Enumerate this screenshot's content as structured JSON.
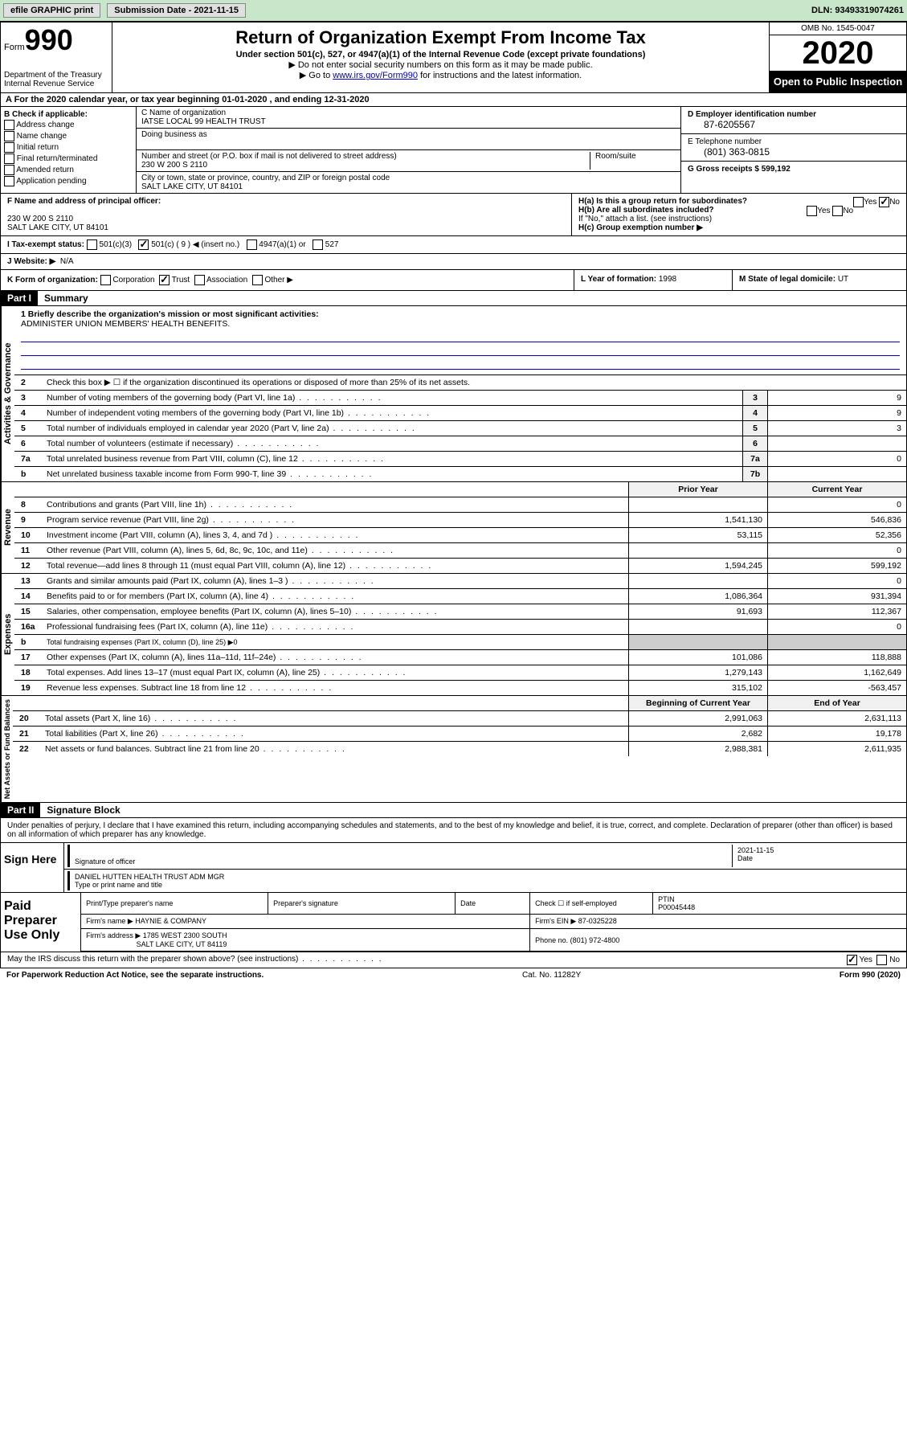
{
  "topbar": {
    "efile": "efile GRAPHIC print",
    "submission_label": "Submission Date - 2021-11-15",
    "dln": "DLN: 93493319074261"
  },
  "header": {
    "form_prefix": "Form",
    "form_number": "990",
    "title": "Return of Organization Exempt From Income Tax",
    "subtitle": "Under section 501(c), 527, or 4947(a)(1) of the Internal Revenue Code (except private foundations)",
    "note1": "▶ Do not enter social security numbers on this form as it may be made public.",
    "note2_pre": "▶ Go to ",
    "note2_link": "www.irs.gov/Form990",
    "note2_post": " for instructions and the latest information.",
    "dept": "Department of the Treasury\nInternal Revenue Service",
    "omb": "OMB No. 1545-0047",
    "year": "2020",
    "otp": "Open to Public Inspection"
  },
  "rowA": "A For the 2020 calendar year, or tax year beginning 01-01-2020   , and ending 12-31-2020",
  "B": {
    "label": "B Check if applicable:",
    "items": [
      "Address change",
      "Name change",
      "Initial return",
      "Final return/terminated",
      "Amended return",
      "Application pending"
    ]
  },
  "C": {
    "name_label": "C Name of organization",
    "name": "IATSE LOCAL 99 HEALTH TRUST",
    "dba_label": "Doing business as",
    "dba": "",
    "addr_label": "Number and street (or P.O. box if mail is not delivered to street address)",
    "room_label": "Room/suite",
    "addr": "230 W 200 S 2110",
    "city_label": "City or town, state or province, country, and ZIP or foreign postal code",
    "city": "SALT LAKE CITY, UT  84101"
  },
  "D": {
    "ein_label": "D Employer identification number",
    "ein": "87-6205567",
    "phone_label": "E Telephone number",
    "phone": "(801) 363-0815",
    "gross_label": "G Gross receipts $",
    "gross": "599,192"
  },
  "F": {
    "label": "F  Name and address of principal officer:",
    "name": "",
    "addr": "230 W 200 S 2110\nSALT LAKE CITY, UT  84101"
  },
  "H": {
    "ha": "H(a)  Is this a group return for subordinates?",
    "ha_no_checked": true,
    "hb": "H(b)  Are all subordinates included?",
    "hb_note": "If \"No,\" attach a list. (see instructions)",
    "hc": "H(c)  Group exemption number ▶"
  },
  "I": {
    "label": "I   Tax-exempt status:",
    "c9_checked": true,
    "opts": [
      "501(c)(3)",
      "501(c) ( 9 ) ◀ (insert no.)",
      "4947(a)(1) or",
      "527"
    ]
  },
  "J": {
    "label": "J   Website: ▶",
    "val": "N/A"
  },
  "K": {
    "label": "K Form of organization:",
    "trust_checked": true,
    "opts": [
      "Corporation",
      "Trust",
      "Association",
      "Other ▶"
    ]
  },
  "L": {
    "label": "L Year of formation:",
    "val": "1998"
  },
  "M": {
    "label": "M State of legal domicile:",
    "val": "UT"
  },
  "partI": {
    "hdr": "Part I",
    "title": "Summary",
    "q1": "1  Briefly describe the organization's mission or most significant activities:",
    "mission": "ADMINISTER UNION MEMBERS' HEALTH BENEFITS.",
    "q2": "Check this box ▶ ☐  if the organization discontinued its operations or disposed of more than 25% of its net assets.",
    "vert_labels": {
      "gov": "Activities & Governance",
      "rev": "Revenue",
      "exp": "Expenses",
      "net": "Net Assets or Fund Balances"
    },
    "col_prior": "Prior Year",
    "col_curr": "Current Year",
    "col_beg": "Beginning of Current Year",
    "col_end": "End of Year",
    "lines_gov": [
      {
        "n": "3",
        "d": "Number of voting members of the governing body (Part VI, line 1a)",
        "box": "3",
        "v": "9"
      },
      {
        "n": "4",
        "d": "Number of independent voting members of the governing body (Part VI, line 1b)",
        "box": "4",
        "v": "9"
      },
      {
        "n": "5",
        "d": "Total number of individuals employed in calendar year 2020 (Part V, line 2a)",
        "box": "5",
        "v": "3"
      },
      {
        "n": "6",
        "d": "Total number of volunteers (estimate if necessary)",
        "box": "6",
        "v": ""
      },
      {
        "n": "7a",
        "d": "Total unrelated business revenue from Part VIII, column (C), line 12",
        "box": "7a",
        "v": "0"
      },
      {
        "n": "b",
        "d": "Net unrelated business taxable income from Form 990-T, line 39",
        "box": "7b",
        "v": ""
      }
    ],
    "lines_rev": [
      {
        "n": "8",
        "d": "Contributions and grants (Part VIII, line 1h)",
        "p": "",
        "c": "0"
      },
      {
        "n": "9",
        "d": "Program service revenue (Part VIII, line 2g)",
        "p": "1,541,130",
        "c": "546,836"
      },
      {
        "n": "10",
        "d": "Investment income (Part VIII, column (A), lines 3, 4, and 7d )",
        "p": "53,115",
        "c": "52,356"
      },
      {
        "n": "11",
        "d": "Other revenue (Part VIII, column (A), lines 5, 6d, 8c, 9c, 10c, and 11e)",
        "p": "",
        "c": "0"
      },
      {
        "n": "12",
        "d": "Total revenue—add lines 8 through 11 (must equal Part VIII, column (A), line 12)",
        "p": "1,594,245",
        "c": "599,192"
      }
    ],
    "lines_exp": [
      {
        "n": "13",
        "d": "Grants and similar amounts paid (Part IX, column (A), lines 1–3 )",
        "p": "",
        "c": "0"
      },
      {
        "n": "14",
        "d": "Benefits paid to or for members (Part IX, column (A), line 4)",
        "p": "1,086,364",
        "c": "931,394"
      },
      {
        "n": "15",
        "d": "Salaries, other compensation, employee benefits (Part IX, column (A), lines 5–10)",
        "p": "91,693",
        "c": "112,367"
      },
      {
        "n": "16a",
        "d": "Professional fundraising fees (Part IX, column (A), line 11e)",
        "p": "",
        "c": "0"
      },
      {
        "n": "b",
        "d": "Total fundraising expenses (Part IX, column (D), line 25) ▶0",
        "p": "—",
        "c": "—"
      },
      {
        "n": "17",
        "d": "Other expenses (Part IX, column (A), lines 11a–11d, 11f–24e)",
        "p": "101,086",
        "c": "118,888"
      },
      {
        "n": "18",
        "d": "Total expenses. Add lines 13–17 (must equal Part IX, column (A), line 25)",
        "p": "1,279,143",
        "c": "1,162,649"
      },
      {
        "n": "19",
        "d": "Revenue less expenses. Subtract line 18 from line 12",
        "p": "315,102",
        "c": "-563,457"
      }
    ],
    "lines_net": [
      {
        "n": "20",
        "d": "Total assets (Part X, line 16)",
        "p": "2,991,063",
        "c": "2,631,113"
      },
      {
        "n": "21",
        "d": "Total liabilities (Part X, line 26)",
        "p": "2,682",
        "c": "19,178"
      },
      {
        "n": "22",
        "d": "Net assets or fund balances. Subtract line 21 from line 20",
        "p": "2,988,381",
        "c": "2,611,935"
      }
    ]
  },
  "partII": {
    "hdr": "Part II",
    "title": "Signature Block",
    "perjury": "Under penalties of perjury, I declare that I have examined this return, including accompanying schedules and statements, and to the best of my knowledge and belief, it is true, correct, and complete. Declaration of preparer (other than officer) is based on all information of which preparer has any knowledge.",
    "sign_here": "Sign Here",
    "sig_officer": "Signature of officer",
    "sig_date_label": "Date",
    "sig_date": "2021-11-15",
    "officer_name": "DANIEL HUTTEN HEALTH TRUST ADM MGR",
    "type_print": "Type or print name and title",
    "paid_prep": "Paid Preparer Use Only",
    "prep_name_label": "Print/Type preparer's name",
    "prep_sig_label": "Preparer's signature",
    "date_label": "Date",
    "check_se": "Check ☐ if self-employed",
    "ptin_label": "PTIN",
    "ptin": "P00045448",
    "firm_name_label": "Firm's name    ▶",
    "firm_name": "HAYNIE & COMPANY",
    "firm_ein_label": "Firm's EIN ▶",
    "firm_ein": "87-0325228",
    "firm_addr_label": "Firm's address ▶",
    "firm_addr": "1785 WEST 2300 SOUTH",
    "firm_city": "SALT LAKE CITY, UT  84119",
    "phone_label": "Phone no.",
    "phone": "(801) 972-4800",
    "discuss": "May the IRS discuss this return with the preparer shown above? (see instructions)",
    "discuss_yes_checked": true
  },
  "footer": {
    "pra": "For Paperwork Reduction Act Notice, see the separate instructions.",
    "cat": "Cat. No. 11282Y",
    "form": "Form 990 (2020)"
  }
}
